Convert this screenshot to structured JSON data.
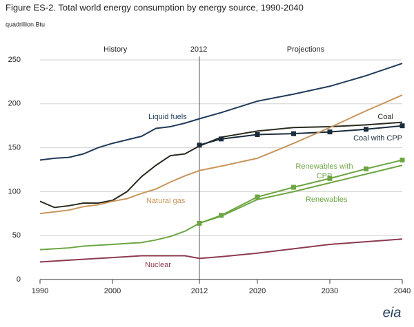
{
  "chart_data": {
    "type": "line",
    "title": "Figure ES-2. Total world energy consumption by energy source, 1990-2040",
    "y_label": "quadrillion Btu",
    "annotations": [
      "History",
      "2012",
      "Projections"
    ],
    "divider": 2012,
    "logo": "eia",
    "x": [
      1990,
      1992,
      1994,
      1996,
      1998,
      2000,
      2002,
      2004,
      2006,
      2008,
      2010,
      2012,
      2015,
      2020,
      2025,
      2030,
      2035,
      2040
    ],
    "xlim": [
      1990,
      2040
    ],
    "xticks": [
      1990,
      2000,
      2012,
      2020,
      2030,
      2040
    ],
    "ylim": [
      0,
      250
    ],
    "yticks": [
      0,
      50,
      100,
      150,
      200,
      250
    ],
    "grid": true,
    "series": [
      {
        "name": "Liquid fuels",
        "color": "#1f3a5a",
        "values": [
          136,
          138,
          139,
          143,
          150,
          155,
          159,
          163,
          172,
          174,
          178,
          183,
          190,
          203,
          211,
          220,
          232,
          246
        ]
      },
      {
        "name": "Coal",
        "color": "#2a2a1e",
        "values": [
          89,
          82,
          84,
          87,
          87,
          90,
          100,
          117,
          130,
          141,
          143,
          152,
          162,
          169,
          173,
          174,
          176,
          179
        ]
      },
      {
        "name": "Coal with CPP",
        "color": "#1a2b3b",
        "marker": "square",
        "values": [
          null,
          null,
          null,
          null,
          null,
          null,
          null,
          null,
          null,
          null,
          null,
          153,
          160,
          165,
          166,
          168,
          171,
          175
        ]
      },
      {
        "name": "Natural gas",
        "color": "#c8955a",
        "values": [
          75,
          77,
          79,
          83,
          85,
          89,
          92,
          98,
          103,
          111,
          118,
          124,
          129,
          138,
          155,
          173,
          192,
          210
        ]
      },
      {
        "name": "Renewables with CPP",
        "color": "#6ca542",
        "marker": "square",
        "values": [
          null,
          null,
          null,
          null,
          null,
          null,
          null,
          null,
          null,
          null,
          null,
          64,
          73,
          94,
          105,
          115,
          126,
          136
        ]
      },
      {
        "name": "Renewables",
        "color": "#6ca542",
        "values": [
          34,
          35,
          36,
          38,
          39,
          40,
          41,
          42,
          45,
          49,
          55,
          64,
          72,
          91,
          100,
          110,
          120,
          130
        ]
      },
      {
        "name": "Nuclear",
        "color": "#8c3a4f",
        "values": [
          20,
          21,
          22,
          23,
          24,
          25,
          26,
          27,
          27,
          27,
          27,
          24,
          26,
          30,
          35,
          40,
          43,
          46
        ]
      }
    ]
  }
}
